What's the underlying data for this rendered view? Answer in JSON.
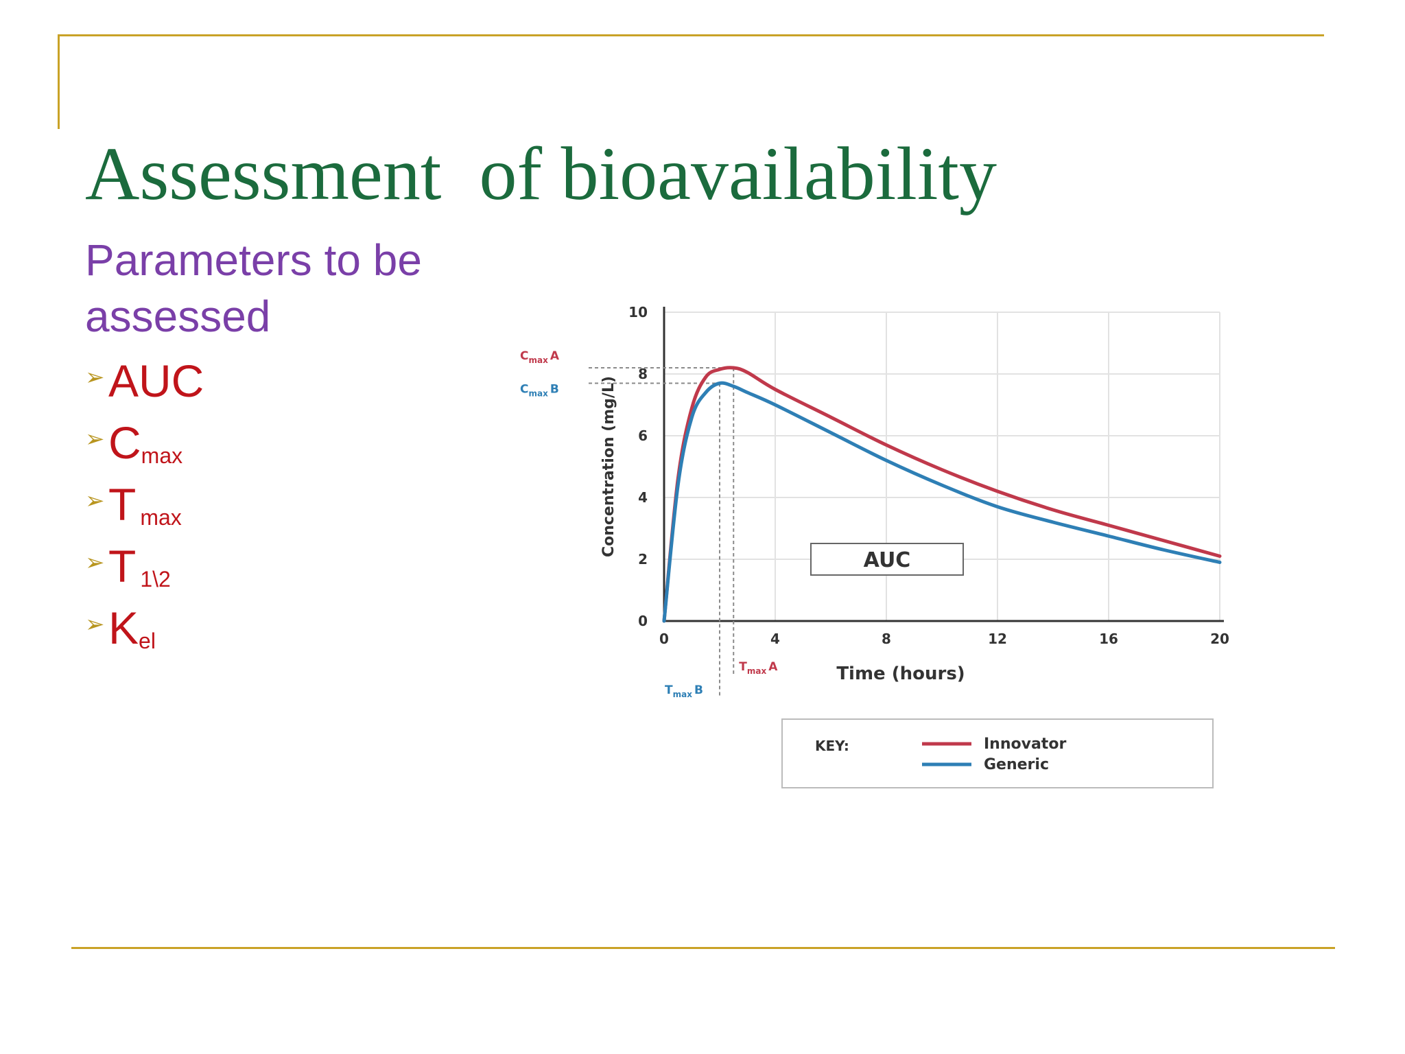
{
  "slide": {
    "title": "Assessment  of bioavailability",
    "subtitle": "Parameters to be assessed",
    "bullets": [
      {
        "main": "AUC",
        "sub": ""
      },
      {
        "main": "C",
        "sub": "max"
      },
      {
        "main": "T",
        "sub": "max"
      },
      {
        "main": "T",
        "sub": "1\\2"
      },
      {
        "main": "K",
        "sub": "el"
      }
    ]
  },
  "colors": {
    "title": "#1b6b3d",
    "subtitle": "#7a3fa8",
    "bullet_text": "#c0141a",
    "bullet_arrow": "#b8951f",
    "frame": "#c9a227"
  },
  "chart_data": {
    "type": "line",
    "xlabel": "Time (hours)",
    "ylabel": "Concentration (mg/L)",
    "xlim": [
      0,
      20
    ],
    "ylim": [
      0,
      10
    ],
    "xticks": [
      0,
      4,
      8,
      12,
      16,
      20
    ],
    "yticks": [
      0,
      2,
      4,
      6,
      8,
      10
    ],
    "grid": true,
    "series": [
      {
        "name": "Innovator",
        "color": "#c0394b",
        "x": [
          0,
          0.5,
          1,
          1.5,
          2,
          2.5,
          3,
          4,
          6,
          8,
          10,
          12,
          14,
          16,
          18,
          20
        ],
        "y": [
          0,
          4.6,
          6.9,
          7.9,
          8.15,
          8.2,
          8.05,
          7.5,
          6.6,
          5.7,
          4.9,
          4.2,
          3.6,
          3.1,
          2.6,
          2.1
        ]
      },
      {
        "name": "Generic",
        "color": "#2e7fb5",
        "x": [
          0,
          0.5,
          1,
          1.5,
          2,
          2.5,
          3,
          4,
          6,
          8,
          10,
          12,
          14,
          16,
          18,
          20
        ],
        "y": [
          0,
          4.4,
          6.6,
          7.4,
          7.7,
          7.6,
          7.4,
          7.0,
          6.1,
          5.2,
          4.4,
          3.7,
          3.2,
          2.75,
          2.3,
          1.9
        ]
      }
    ],
    "annotations": {
      "cmax_a": {
        "label": "Cmax A",
        "base": "C",
        "sub": "max",
        "suffix": "A",
        "value": 8.2,
        "time": 2.5
      },
      "cmax_b": {
        "label": "Cmax B",
        "base": "C",
        "sub": "max",
        "suffix": "B",
        "value": 7.7,
        "time": 2
      },
      "tmax_a": {
        "label": "Tmax A",
        "base": "T",
        "sub": "max",
        "suffix": "A",
        "value": 2.5
      },
      "tmax_b": {
        "label": "Tmax B",
        "base": "T",
        "sub": "max",
        "suffix": "B",
        "value": 2
      },
      "auc_label": "AUC"
    },
    "legend": {
      "title": "KEY:",
      "placement": "bottom"
    }
  }
}
